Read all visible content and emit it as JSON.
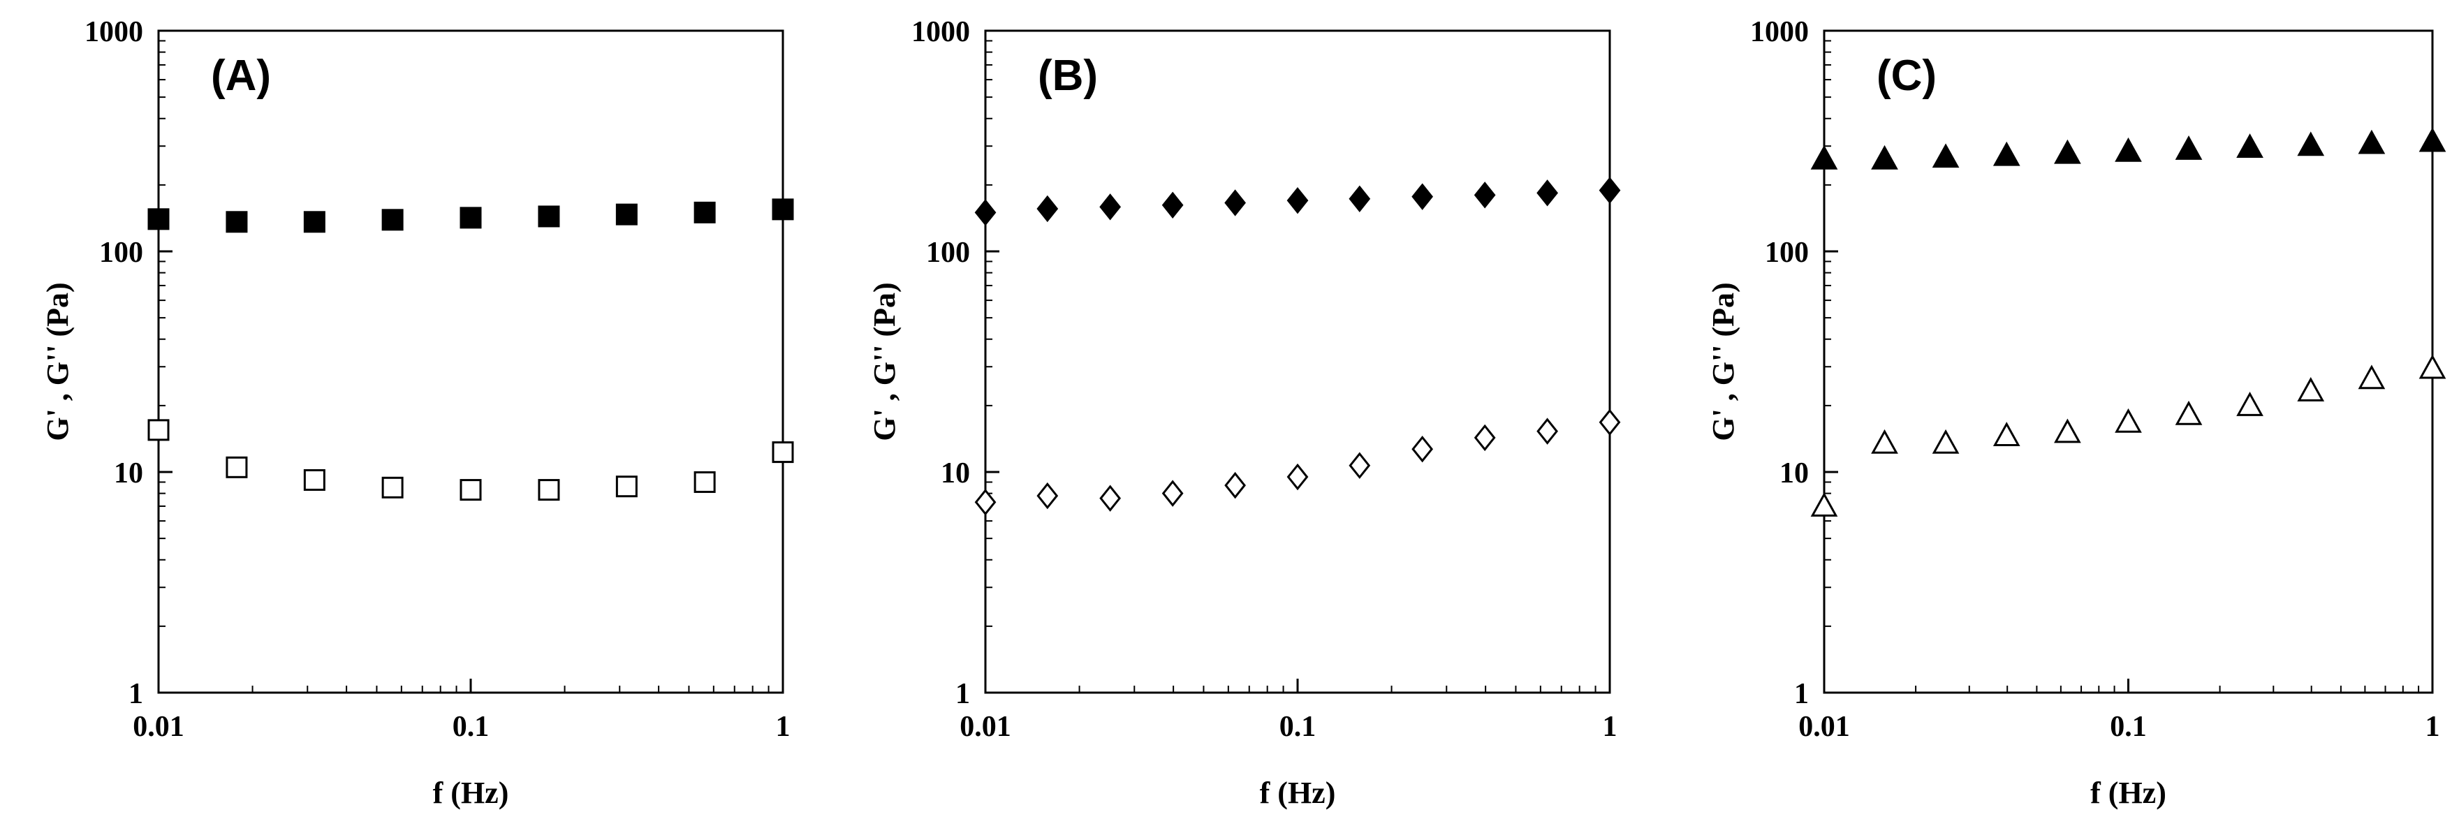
{
  "chart_data": [
    {
      "type": "scatter",
      "panel_label": "(A)",
      "xlabel": "f (Hz)",
      "ylabel": "G' , G'' (Pa)",
      "xscale": "log",
      "yscale": "log",
      "xlim": [
        0.01,
        1
      ],
      "ylim": [
        1,
        1000
      ],
      "xticks": [
        "0.01",
        "0.1",
        "1"
      ],
      "yticks": [
        "1",
        "10",
        "100",
        "1000"
      ],
      "grid": false,
      "series": [
        {
          "marker": "square-filled",
          "x": [
            0.01,
            0.0178,
            0.0316,
            0.0562,
            0.1,
            0.178,
            0.316,
            0.562,
            1.0
          ],
          "y": [
            140,
            136,
            136,
            139,
            142,
            144,
            147,
            150,
            155
          ]
        },
        {
          "marker": "square-open",
          "x": [
            0.01,
            0.0178,
            0.0316,
            0.0562,
            0.1,
            0.178,
            0.316,
            0.562,
            1.0
          ],
          "y": [
            15.5,
            10.5,
            9.2,
            8.5,
            8.3,
            8.3,
            8.6,
            9.0,
            12.3
          ]
        }
      ]
    },
    {
      "type": "scatter",
      "panel_label": "(B)",
      "xlabel": "f (Hz)",
      "ylabel": "G' , G'' (Pa)",
      "xscale": "log",
      "yscale": "log",
      "xlim": [
        0.01,
        1
      ],
      "ylim": [
        1,
        1000
      ],
      "xticks": [
        "0.01",
        "0.1",
        "1"
      ],
      "yticks": [
        "1",
        "10",
        "100",
        "1000"
      ],
      "grid": false,
      "series": [
        {
          "marker": "diamond-filled",
          "x": [
            0.01,
            0.0158,
            0.0251,
            0.0398,
            0.0631,
            0.1,
            0.158,
            0.251,
            0.398,
            0.631,
            1.0
          ],
          "y": [
            150,
            156,
            159,
            162,
            166,
            170,
            173,
            177,
            180,
            184,
            189
          ]
        },
        {
          "marker": "diamond-open",
          "x": [
            0.01,
            0.0158,
            0.0251,
            0.0398,
            0.0631,
            0.1,
            0.158,
            0.251,
            0.398,
            0.631,
            1.0
          ],
          "y": [
            7.3,
            7.8,
            7.6,
            8.0,
            8.7,
            9.5,
            10.7,
            12.7,
            14.3,
            15.3,
            16.8
          ]
        }
      ]
    },
    {
      "type": "scatter",
      "panel_label": "(C)",
      "xlabel": "f (Hz)",
      "ylabel": "G' , G'' (Pa)",
      "xscale": "log",
      "yscale": "log",
      "xlim": [
        0.01,
        1
      ],
      "ylim": [
        1,
        1000
      ],
      "xticks": [
        "0.01",
        "0.1",
        "1"
      ],
      "yticks": [
        "1",
        "10",
        "100",
        "1000"
      ],
      "grid": false,
      "series": [
        {
          "marker": "triangle-filled",
          "x": [
            0.01,
            0.0158,
            0.0251,
            0.0398,
            0.0631,
            0.1,
            0.158,
            0.251,
            0.398,
            0.631,
            1.0
          ],
          "y": [
            262,
            262,
            267,
            272,
            278,
            284,
            290,
            296,
            302,
            308,
            315
          ]
        },
        {
          "marker": "triangle-open",
          "x": [
            0.01,
            0.0158,
            0.0251,
            0.0398,
            0.0631,
            0.1,
            0.158,
            0.251,
            0.398,
            0.631,
            1.0
          ],
          "y": [
            7.0,
            13.5,
            13.5,
            14.6,
            15.1,
            16.8,
            18.2,
            20.0,
            23.3,
            26.5,
            29.5
          ]
        }
      ]
    }
  ]
}
